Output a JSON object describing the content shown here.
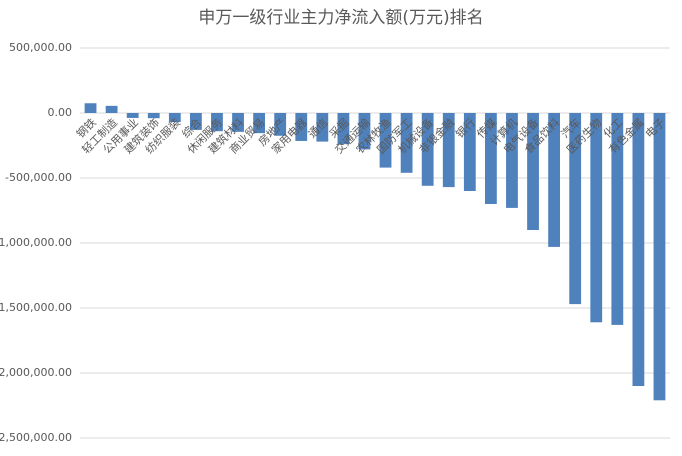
{
  "chart_data": {
    "type": "bar",
    "title": "申万一级行业主力净流入额(万元)排名",
    "categories": [
      "钢铁",
      "轻工制造",
      "公用事业",
      "建筑装饰",
      "纺织服装",
      "综合",
      "休闲服务",
      "建筑材料",
      "商业贸易",
      "房地产",
      "家用电器",
      "通信",
      "采掘",
      "交通运输",
      "农林牧渔",
      "国防军工",
      "机械设备",
      "非银金融",
      "银行",
      "传媒",
      "计算机",
      "电气设备",
      "食品饮料",
      "汽车",
      "医药生物",
      "化工",
      "有色金属",
      "电子"
    ],
    "values": [
      75000,
      55000,
      -38000,
      -40000,
      -70000,
      -130000,
      -140000,
      -145000,
      -155000,
      -175000,
      -215000,
      -220000,
      -240000,
      -280000,
      -420000,
      -460000,
      -560000,
      -570000,
      -600000,
      -700000,
      -730000,
      -900000,
      -1030000,
      -1470000,
      -1610000,
      -1630000,
      -2100000,
      -2210000
    ],
    "color": "#4f81bd",
    "ylim": [
      -2500000,
      500000
    ],
    "yticks": [
      {
        "value": -2500000,
        "label": "-2,500,000.00"
      },
      {
        "value": -2000000,
        "label": "-2,000,000.00"
      },
      {
        "value": -1500000,
        "label": "-1,500,000.00"
      },
      {
        "value": -1000000,
        "label": "-1,000,000.00"
      },
      {
        "value": -500000,
        "label": "-500,000.00"
      },
      {
        "value": 0,
        "label": "0.00"
      },
      {
        "value": 500000,
        "label": "500,000.00"
      }
    ],
    "grid": true
  }
}
